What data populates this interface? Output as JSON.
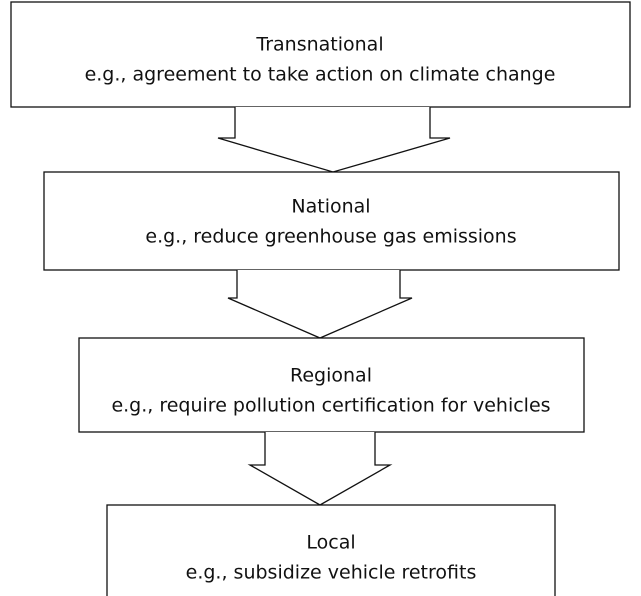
{
  "levels": [
    {
      "title": "Transnational",
      "example": "e.g., agreement to take action on climate change"
    },
    {
      "title": "National",
      "example": "e.g., reduce greenhouse gas emissions"
    },
    {
      "title": "Regional",
      "example": "e.g., require pollution certification for vehicles"
    },
    {
      "title": "Local",
      "example": "e.g., subsidize vehicle retrofits"
    }
  ]
}
